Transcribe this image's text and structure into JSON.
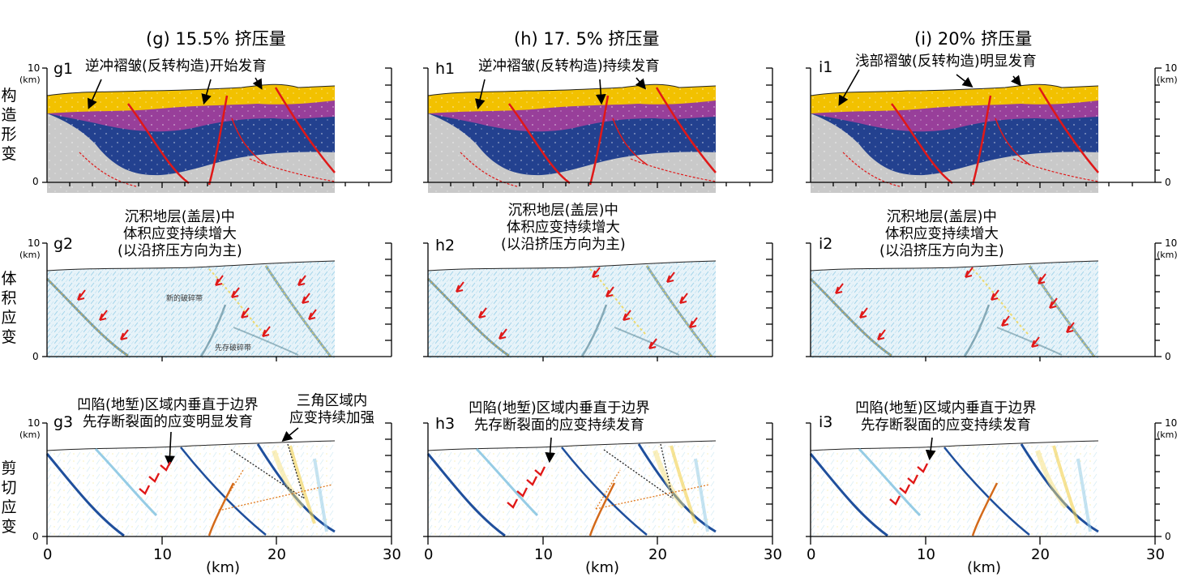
{
  "columns": [
    {
      "title": "(g) 15.5% 挤压量"
    },
    {
      "title": "(h) 17. 5% 挤压量"
    },
    {
      "title": "(i) 20% 挤压量"
    }
  ],
  "row_labels": [
    "构造形变",
    "体积应变",
    "剪切应变"
  ],
  "panels": {
    "g1": "g1",
    "h1": "h1",
    "i1": "i1",
    "g2": "g2",
    "h2": "h2",
    "i2": "i2",
    "g3": "g3",
    "h3": "h3",
    "i3": "i3"
  },
  "annotations": {
    "g1": "逆冲褶皱(反转构造)开始发育",
    "h1": "逆冲褶皱(反转构造)持续发育",
    "i1": "浅部褶皱(反转构造)明显发育",
    "row2": "沉积地层(盖层)中\n体积应变持续增大\n(以沿挤压方向为主)",
    "g3_a": "凹陷(地堑)区域内垂直于边界\n先存断裂面的应变明显发育",
    "g3_b": "三角区域内\n应变持续加强",
    "h3": "凹陷(地堑)区域内垂直于边界\n先存断裂面的应变持续发育",
    "i3": "凹陷(地堑)区域内垂直于边界\n先存断裂面的应变持续发育",
    "g2_small_1": "新的破碎带",
    "g2_small_2": "先存破碎带"
  },
  "axes": {
    "y_top": "10",
    "y_bottom": "0",
    "y_unit": "(km)",
    "x_ticks": [
      "0",
      "10",
      "20",
      "30"
    ],
    "x_label": "(km)"
  }
}
